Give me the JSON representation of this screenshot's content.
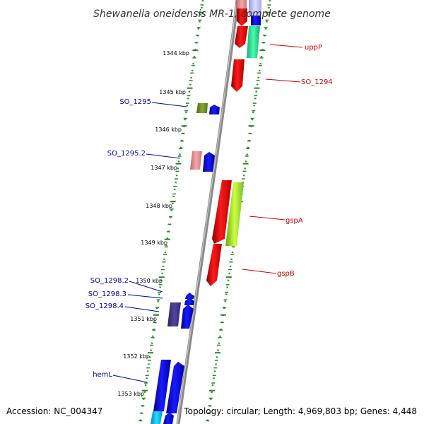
{
  "title": "Shewanella oneidensis MR-1, complete genome",
  "footer": {
    "accession": "Accession: NC_004347",
    "topology": "Topology: circular; Length: 4,969,803 bp; Genes: 4,448"
  },
  "scale_labels": [
    "1344 kbp",
    "1345 kbp",
    "1346 kbp",
    "1347 kbp",
    "1348 kbp",
    "1349 kbp",
    "1350 kbp",
    "1351 kbp",
    "1352 kbp",
    "1353 kbp"
  ],
  "gene_labels": {
    "uppP": "uppP",
    "SO_1294": "SO_1294",
    "SO_1295": "SO_1295",
    "SO_1295_2": "SO_1295.2",
    "gspA": "gspA",
    "gspB": "gspB",
    "SO_1298_2": "SO_1298.2",
    "SO_1298_3": "SO_1298.3",
    "SO_1298_4": "SO_1298.4",
    "hemL": "hemL"
  },
  "colors": {
    "reverse_strand_label": "#cc0000",
    "forward_strand_label": "#0000aa",
    "axis_ticks": "#228822",
    "backbone": "#888888"
  }
}
